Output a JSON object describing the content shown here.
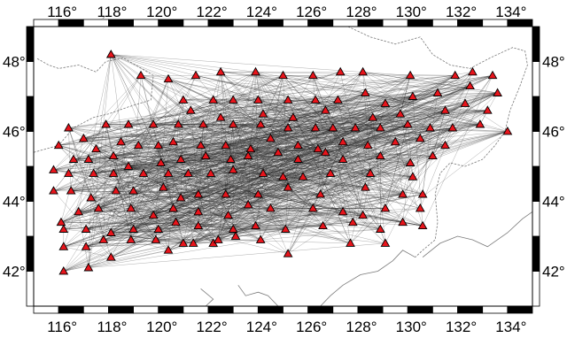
{
  "map": {
    "lon_range": [
      115,
      135
    ],
    "lat_range": [
      41,
      49
    ],
    "frame_style": "alternating black/white bars every 1 degree",
    "x_ticks": [
      {
        "value": 116,
        "label": "116°"
      },
      {
        "value": 118,
        "label": "118°"
      },
      {
        "value": 120,
        "label": "120°"
      },
      {
        "value": 122,
        "label": "122°"
      },
      {
        "value": 124,
        "label": "124°"
      },
      {
        "value": 126,
        "label": "126°"
      },
      {
        "value": 128,
        "label": "128°"
      },
      {
        "value": 130,
        "label": "130°"
      },
      {
        "value": 132,
        "label": "132°"
      },
      {
        "value": 134,
        "label": "134°"
      }
    ],
    "y_ticks": [
      {
        "value": 42,
        "label": "42°"
      },
      {
        "value": 44,
        "label": "44°"
      },
      {
        "value": 46,
        "label": "46°"
      },
      {
        "value": 48,
        "label": "48°"
      }
    ],
    "colors": {
      "station_fill": "#e8141b",
      "station_stroke": "#000000",
      "ray_path": "#2a2a2a",
      "border": "#7a7a7a"
    },
    "marker_symbol": "triangle",
    "stations": [
      [
        118.1,
        48.2
      ],
      [
        119.3,
        47.6
      ],
      [
        120.4,
        47.5
      ],
      [
        121.5,
        47.6
      ],
      [
        122.5,
        47.7
      ],
      [
        123.9,
        47.7
      ],
      [
        125.0,
        47.6
      ],
      [
        126.2,
        47.6
      ],
      [
        127.3,
        47.7
      ],
      [
        128.2,
        47.7
      ],
      [
        130.1,
        47.6
      ],
      [
        131.9,
        47.6
      ],
      [
        132.6,
        47.7
      ],
      [
        133.4,
        47.6
      ],
      [
        121.0,
        46.9
      ],
      [
        122.2,
        46.9
      ],
      [
        123.0,
        46.9
      ],
      [
        124.0,
        46.9
      ],
      [
        125.2,
        46.9
      ],
      [
        126.3,
        46.9
      ],
      [
        127.2,
        46.9
      ],
      [
        128.3,
        47.1
      ],
      [
        129.1,
        46.8
      ],
      [
        130.2,
        47.0
      ],
      [
        131.2,
        47.1
      ],
      [
        132.5,
        47.3
      ],
      [
        133.6,
        47.1
      ],
      [
        121.3,
        46.6
      ],
      [
        122.5,
        46.4
      ],
      [
        124.2,
        46.5
      ],
      [
        125.4,
        46.4
      ],
      [
        126.7,
        46.6
      ],
      [
        128.6,
        46.4
      ],
      [
        129.7,
        46.5
      ],
      [
        131.5,
        46.6
      ],
      [
        132.3,
        46.8
      ],
      [
        133.2,
        46.6
      ],
      [
        116.4,
        46.1
      ],
      [
        117.9,
        46.2
      ],
      [
        118.8,
        46.2
      ],
      [
        119.8,
        46.2
      ],
      [
        120.8,
        46.2
      ],
      [
        121.8,
        46.2
      ],
      [
        123.0,
        46.2
      ],
      [
        124.1,
        46.2
      ],
      [
        125.2,
        46.1
      ],
      [
        126.3,
        46.1
      ],
      [
        127.0,
        46.1
      ],
      [
        127.9,
        46.1
      ],
      [
        128.9,
        46.1
      ],
      [
        130.0,
        46.2
      ],
      [
        130.9,
        46.1
      ],
      [
        131.8,
        46.1
      ],
      [
        132.9,
        46.2
      ],
      [
        134.0,
        46.0
      ],
      [
        116.0,
        45.6
      ],
      [
        117.0,
        45.8
      ],
      [
        117.5,
        45.5
      ],
      [
        118.5,
        45.7
      ],
      [
        119.2,
        45.6
      ],
      [
        120.0,
        45.6
      ],
      [
        120.6,
        45.7
      ],
      [
        121.7,
        45.6
      ],
      [
        122.7,
        45.6
      ],
      [
        123.7,
        45.5
      ],
      [
        124.5,
        45.8
      ],
      [
        125.6,
        45.6
      ],
      [
        126.4,
        45.5
      ],
      [
        127.4,
        45.7
      ],
      [
        128.4,
        45.6
      ],
      [
        129.5,
        45.7
      ],
      [
        130.5,
        45.8
      ],
      [
        131.5,
        45.6
      ],
      [
        115.8,
        44.9
      ],
      [
        116.6,
        45.2
      ],
      [
        117.2,
        45.2
      ],
      [
        118.2,
        45.3
      ],
      [
        118.8,
        45.0
      ],
      [
        120.1,
        45.1
      ],
      [
        120.9,
        45.2
      ],
      [
        121.9,
        45.3
      ],
      [
        122.9,
        45.2
      ],
      [
        123.6,
        45.3
      ],
      [
        124.8,
        45.4
      ],
      [
        125.6,
        45.2
      ],
      [
        126.7,
        45.4
      ],
      [
        127.4,
        45.2
      ],
      [
        128.9,
        45.3
      ],
      [
        130.1,
        45.1
      ],
      [
        131.0,
        45.3
      ],
      [
        116.4,
        44.8
      ],
      [
        117.4,
        44.8
      ],
      [
        118.2,
        44.8
      ],
      [
        119.4,
        44.8
      ],
      [
        120.4,
        44.8
      ],
      [
        121.2,
        44.8
      ],
      [
        122.1,
        44.8
      ],
      [
        123.0,
        44.9
      ],
      [
        124.2,
        44.8
      ],
      [
        125.0,
        44.7
      ],
      [
        125.8,
        44.7
      ],
      [
        126.9,
        44.8
      ],
      [
        128.5,
        44.8
      ],
      [
        130.2,
        44.7
      ],
      [
        115.8,
        44.3
      ],
      [
        116.5,
        44.3
      ],
      [
        117.3,
        44.1
      ],
      [
        118.3,
        44.3
      ],
      [
        119.0,
        44.3
      ],
      [
        120.2,
        44.4
      ],
      [
        120.9,
        44.1
      ],
      [
        121.6,
        44.2
      ],
      [
        122.7,
        44.2
      ],
      [
        124.0,
        44.2
      ],
      [
        125.2,
        44.4
      ],
      [
        126.5,
        44.2
      ],
      [
        128.3,
        44.4
      ],
      [
        129.8,
        44.2
      ],
      [
        130.6,
        44.2
      ],
      [
        116.1,
        43.4
      ],
      [
        116.8,
        43.7
      ],
      [
        117.6,
        43.8
      ],
      [
        118.9,
        43.8
      ],
      [
        119.8,
        43.6
      ],
      [
        120.6,
        43.8
      ],
      [
        121.6,
        43.7
      ],
      [
        122.8,
        43.6
      ],
      [
        123.6,
        43.9
      ],
      [
        124.5,
        43.8
      ],
      [
        126.2,
        43.8
      ],
      [
        127.4,
        43.7
      ],
      [
        128.2,
        43.6
      ],
      [
        129.1,
        43.8
      ],
      [
        130.5,
        43.8
      ],
      [
        116.2,
        43.2
      ],
      [
        117.1,
        43.2
      ],
      [
        118.1,
        43.1
      ],
      [
        119.0,
        43.2
      ],
      [
        120.0,
        43.2
      ],
      [
        120.7,
        43.4
      ],
      [
        121.6,
        43.3
      ],
      [
        123.0,
        43.2
      ],
      [
        123.9,
        43.3
      ],
      [
        125.1,
        43.2
      ],
      [
        126.6,
        43.3
      ],
      [
        127.8,
        43.4
      ],
      [
        128.9,
        43.2
      ],
      [
        129.8,
        43.4
      ],
      [
        130.6,
        43.3
      ],
      [
        116.2,
        42.7
      ],
      [
        117.1,
        42.7
      ],
      [
        117.8,
        42.9
      ],
      [
        118.9,
        42.9
      ],
      [
        119.9,
        42.9
      ],
      [
        121.0,
        42.8
      ],
      [
        122.2,
        42.8
      ],
      [
        123.1,
        43.0
      ],
      [
        124.1,
        42.9
      ],
      [
        125.2,
        42.5
      ],
      [
        127.7,
        42.8
      ],
      [
        129.1,
        42.8
      ],
      [
        116.2,
        42.0
      ],
      [
        117.2,
        42.1
      ],
      [
        118.1,
        42.4
      ],
      [
        120.4,
        42.6
      ],
      [
        121.4,
        42.8
      ],
      [
        122.4,
        42.9
      ]
    ]
  }
}
